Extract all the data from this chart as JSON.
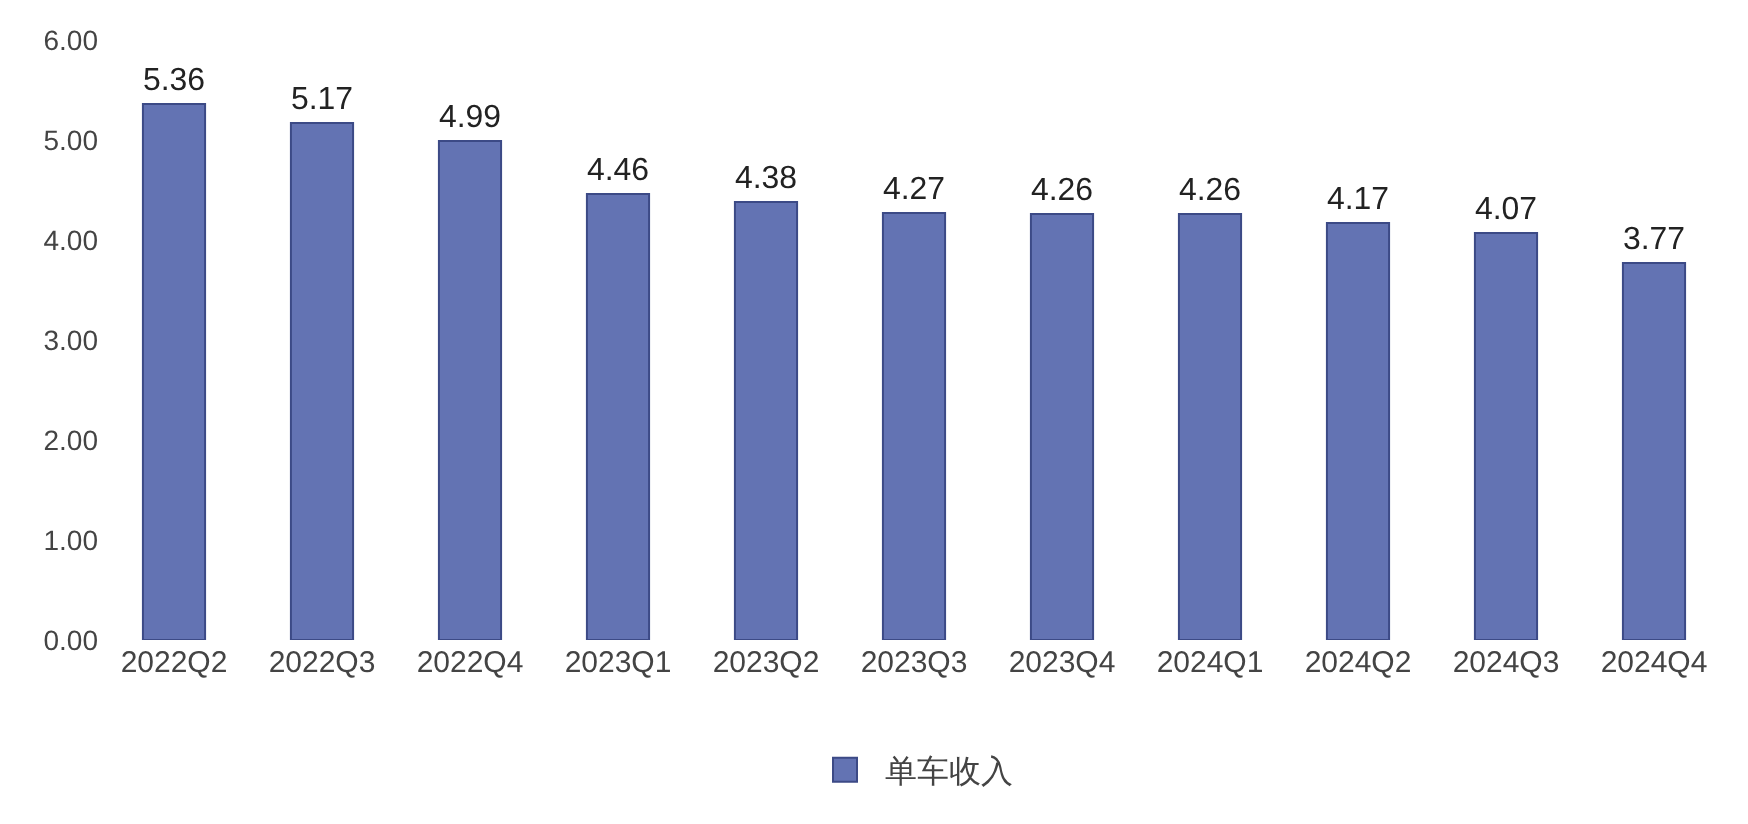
{
  "chart_data": {
    "type": "bar",
    "categories": [
      "2022Q2",
      "2022Q3",
      "2022Q4",
      "2023Q1",
      "2023Q2",
      "2023Q3",
      "2023Q4",
      "2024Q1",
      "2024Q2",
      "2024Q3",
      "2024Q4"
    ],
    "series": [
      {
        "name": "单车收入",
        "color": "#6373b3",
        "values": [
          5.36,
          5.17,
          4.99,
          4.46,
          4.38,
          4.27,
          4.26,
          4.26,
          4.17,
          4.07,
          3.77
        ]
      }
    ],
    "ylim": [
      0,
      6
    ],
    "yticks": [
      {
        "value": 0,
        "label": "0.00"
      },
      {
        "value": 1,
        "label": "1.00"
      },
      {
        "value": 2,
        "label": "2.00"
      },
      {
        "value": 3,
        "label": "3.00"
      },
      {
        "value": 4,
        "label": "4.00"
      },
      {
        "value": 5,
        "label": "5.00"
      },
      {
        "value": 6,
        "label": "6.00"
      }
    ],
    "data_labels": true,
    "grid": false,
    "legend": "bottom"
  }
}
